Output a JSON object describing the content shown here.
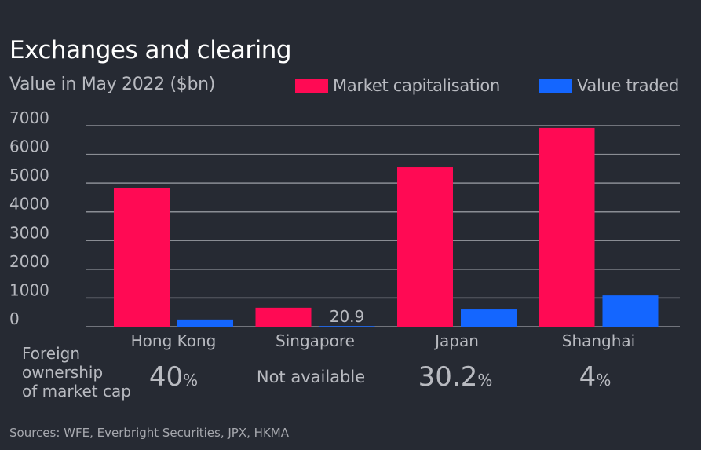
{
  "chart_data": {
    "type": "bar",
    "title": "Exchanges and clearing",
    "subtitle": "Value in May 2022 ($bn)",
    "categories": [
      "Hong Kong",
      "Singapore",
      "Japan",
      "Shanghai"
    ],
    "series": [
      {
        "name": "Market capitalisation",
        "color": "#ff0a54",
        "values": [
          4830,
          660,
          5550,
          6920
        ]
      },
      {
        "name": "Value traded",
        "color": "#1466ff",
        "values": [
          250,
          20.9,
          600,
          1090
        ]
      }
    ],
    "data_labels": [
      {
        "series": "Value traded",
        "category": "Singapore",
        "text": "20.9"
      }
    ],
    "ylim": [
      0,
      7000
    ],
    "yticks": [
      "0",
      "1000",
      "2000",
      "3000",
      "4000",
      "5000",
      "6000",
      "7000"
    ],
    "grid": true,
    "legend_placement": "top-right"
  },
  "ownership": {
    "label_lines": [
      "Foreign",
      "ownership",
      "of market cap"
    ],
    "values": [
      {
        "num": "40",
        "unit": "%"
      },
      {
        "text": "Not available"
      },
      {
        "num": "30.2",
        "unit": "%"
      },
      {
        "num": "4",
        "unit": "%"
      }
    ]
  },
  "source": "Sources: WFE, Everbright Securities, JPX, HKMA"
}
